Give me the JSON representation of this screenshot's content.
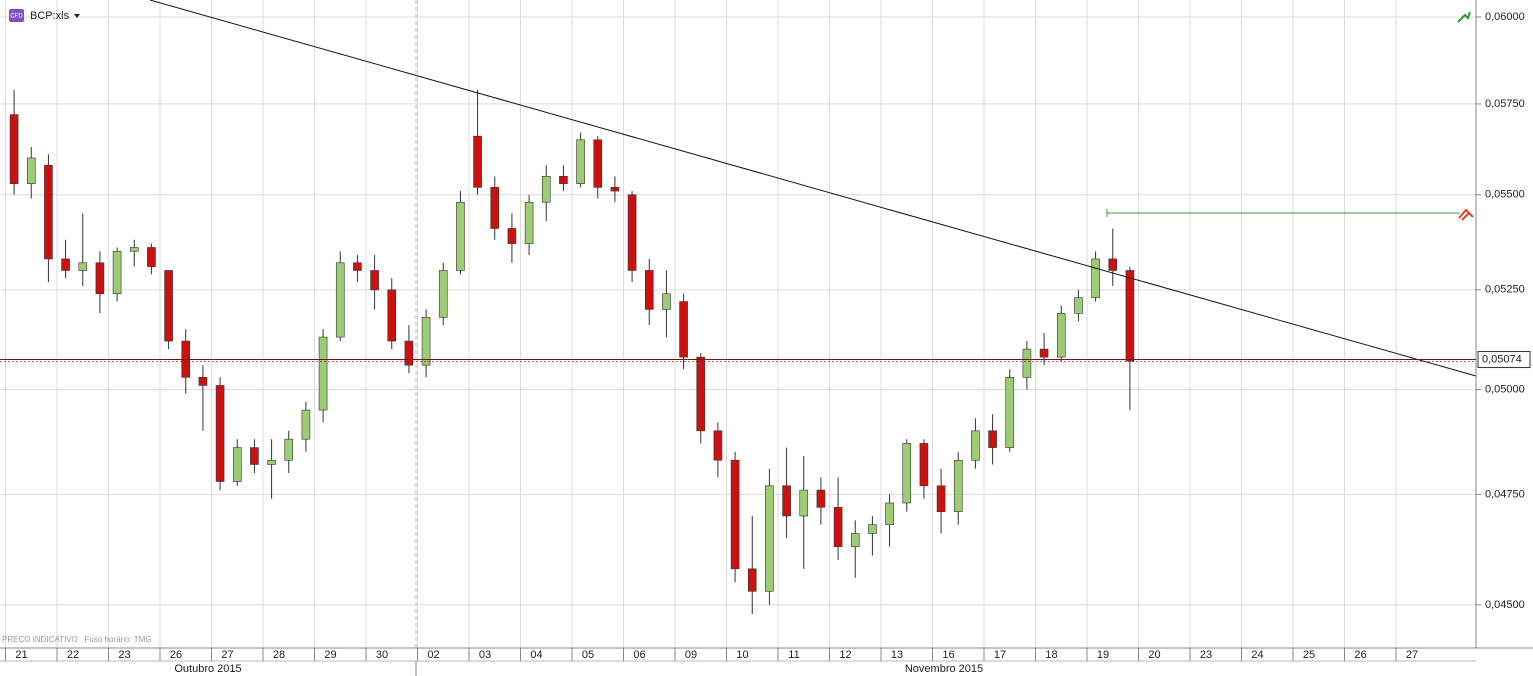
{
  "chart_data": {
    "type": "candlestick",
    "symbol": "BCP:xls",
    "badge": "CFD",
    "footnote": "PREÇO INDICATIVO   Fuso horário: TMG",
    "months": [
      "Outubro 2015",
      "Novembro 2015"
    ],
    "categories": [
      "21",
      "22",
      "23",
      "26",
      "27",
      "28",
      "29",
      "30",
      "02",
      "03",
      "04",
      "05",
      "06",
      "09",
      "10",
      "11",
      "12",
      "13",
      "16",
      "17",
      "18",
      "19",
      "20",
      "23",
      "24",
      "25",
      "26",
      "27"
    ],
    "ohlc": [
      [
        [
          0.0572,
          0.0579,
          0.055,
          0.0553
        ],
        [
          0.0553,
          0.0563,
          0.0549,
          0.056
        ],
        [
          0.0558,
          0.0561,
          0.0527,
          0.0533
        ]
      ],
      [
        [
          0.0533,
          0.0538,
          0.0528,
          0.053
        ],
        [
          0.053,
          0.0545,
          0.0526,
          0.0532
        ],
        [
          0.0532,
          0.0535,
          0.0519,
          0.0524
        ]
      ],
      [
        [
          0.0524,
          0.0536,
          0.0522,
          0.0535
        ],
        [
          0.0535,
          0.0538,
          0.0531,
          0.0536
        ],
        [
          0.0536,
          0.0537,
          0.0529,
          0.0531
        ]
      ],
      [
        [
          0.053,
          0.053,
          0.051,
          0.0512
        ],
        [
          0.0512,
          0.0515,
          0.0499,
          0.0503
        ],
        [
          0.0503,
          0.0506,
          0.049,
          0.0501
        ]
      ],
      [
        [
          0.0501,
          0.0503,
          0.0476,
          0.0478
        ],
        [
          0.0478,
          0.0488,
          0.0477,
          0.0486
        ],
        [
          0.0486,
          0.0488,
          0.048,
          0.0482
        ]
      ],
      [
        [
          0.0482,
          0.0488,
          0.0474,
          0.0483
        ],
        [
          0.0483,
          0.049,
          0.048,
          0.0488
        ],
        [
          0.0488,
          0.0497,
          0.0485,
          0.0495
        ]
      ],
      [
        [
          0.0495,
          0.0515,
          0.0492,
          0.0513
        ],
        [
          0.0513,
          0.0535,
          0.0512,
          0.0532
        ],
        [
          0.0532,
          0.0534,
          0.0527,
          0.053
        ]
      ],
      [
        [
          0.053,
          0.0534,
          0.052,
          0.0525
        ],
        [
          0.0525,
          0.0528,
          0.051,
          0.0512
        ],
        [
          0.0512,
          0.0516,
          0.0504,
          0.0506
        ]
      ],
      [
        [
          0.0506,
          0.052,
          0.0503,
          0.0518
        ],
        [
          0.0518,
          0.0532,
          0.0516,
          0.053
        ],
        [
          0.053,
          0.0551,
          0.0529,
          0.0548
        ]
      ],
      [
        [
          0.0566,
          0.0579,
          0.055,
          0.0552
        ],
        [
          0.0552,
          0.0555,
          0.0538,
          0.0541
        ],
        [
          0.0541,
          0.0545,
          0.0532,
          0.0537
        ]
      ],
      [
        [
          0.0537,
          0.055,
          0.0534,
          0.0548
        ],
        [
          0.0548,
          0.0558,
          0.0543,
          0.0555
        ],
        [
          0.0555,
          0.0558,
          0.0551,
          0.0553
        ]
      ],
      [
        [
          0.0553,
          0.0567,
          0.0552,
          0.0565
        ],
        [
          0.0565,
          0.0566,
          0.0549,
          0.0552
        ],
        [
          0.0552,
          0.0555,
          0.0548,
          0.0551
        ]
      ],
      [
        [
          0.055,
          0.0551,
          0.0527,
          0.053
        ],
        [
          0.053,
          0.0533,
          0.0516,
          0.052
        ],
        [
          0.052,
          0.053,
          0.0513,
          0.0524
        ]
      ],
      [
        [
          0.0522,
          0.0524,
          0.0505,
          0.0508
        ],
        [
          0.0508,
          0.0509,
          0.0487,
          0.049
        ],
        [
          0.049,
          0.0492,
          0.0479,
          0.0483
        ]
      ],
      [
        [
          0.0483,
          0.0485,
          0.0455,
          0.0458
        ],
        [
          0.0458,
          0.047,
          0.0448,
          0.0453
        ],
        [
          0.0453,
          0.0481,
          0.045,
          0.0477
        ]
      ],
      [
        [
          0.0477,
          0.0486,
          0.0465,
          0.047
        ],
        [
          0.047,
          0.0484,
          0.0458,
          0.0476
        ],
        [
          0.0476,
          0.0479,
          0.0468,
          0.0472
        ]
      ],
      [
        [
          0.0472,
          0.0479,
          0.046,
          0.0463
        ],
        [
          0.0463,
          0.0469,
          0.0456,
          0.0466
        ],
        [
          0.0466,
          0.047,
          0.0461,
          0.0468
        ]
      ],
      [
        [
          0.0468,
          0.0475,
          0.0463,
          0.0473
        ],
        [
          0.0473,
          0.0488,
          0.0471,
          0.0487
        ],
        [
          0.0487,
          0.0488,
          0.0474,
          0.0477
        ]
      ],
      [
        [
          0.0477,
          0.0481,
          0.0466,
          0.0471
        ],
        [
          0.0471,
          0.0485,
          0.0468,
          0.0483
        ],
        [
          0.0483,
          0.0493,
          0.0481,
          0.049
        ]
      ],
      [
        [
          0.049,
          0.0494,
          0.0482,
          0.0486
        ],
        [
          0.0486,
          0.0505,
          0.0485,
          0.0503
        ],
        [
          0.0503,
          0.0512,
          0.05,
          0.051
        ]
      ],
      [
        [
          0.051,
          0.0514,
          0.0506,
          0.0508
        ],
        [
          0.0508,
          0.0521,
          0.0507,
          0.0519
        ],
        [
          0.0519,
          0.0525,
          0.0517,
          0.0523
        ]
      ],
      [
        [
          0.0523,
          0.0535,
          0.0522,
          0.0533
        ],
        [
          0.0533,
          0.0541,
          0.0526,
          0.053
        ],
        [
          0.053,
          0.0531,
          0.0495,
          0.0507
        ]
      ],
      [],
      [],
      [],
      [],
      [],
      []
    ],
    "up_color": "#9ccc74",
    "down_color": "#cc1111",
    "log": true,
    "grid": true,
    "ylim": [
      0.04406,
      0.0605
    ],
    "yticks": [
      {
        "value": 0.045,
        "label": "0,04500"
      },
      {
        "value": 0.0475,
        "label": "0,04750"
      },
      {
        "value": 0.05,
        "label": "0,05000"
      },
      {
        "value": 0.0525,
        "label": "0,05250"
      },
      {
        "value": 0.055,
        "label": "0,05500"
      },
      {
        "value": 0.0575,
        "label": "0,05750"
      },
      {
        "value": 0.06,
        "label": "0,06000"
      }
    ],
    "last_price": {
      "value": 0.05074,
      "label": "0,05074"
    }
  }
}
